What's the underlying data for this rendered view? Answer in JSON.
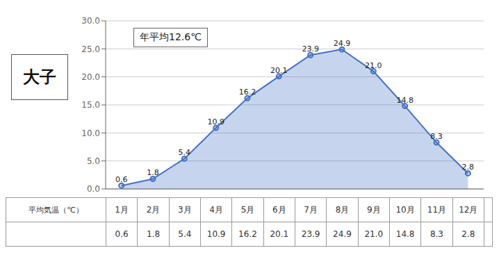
{
  "chart_data": {
    "type": "area",
    "title": "大子",
    "annotation": "年平均12.6℃",
    "table_label": "平均気温（℃）",
    "categories": [
      "1月",
      "2月",
      "3月",
      "4月",
      "5月",
      "6月",
      "7月",
      "8月",
      "9月",
      "10月",
      "11月",
      "12月"
    ],
    "values": [
      0.6,
      1.8,
      5.4,
      10.9,
      16.2,
      20.1,
      23.9,
      24.9,
      21.0,
      14.8,
      8.3,
      2.8
    ],
    "value_labels": [
      "0.6",
      "1.8",
      "5.4",
      "10.9",
      "16.2",
      "20.1",
      "23.9",
      "24.9",
      "21.0",
      "14.8",
      "8.3",
      "2.8"
    ],
    "ylim": [
      0.0,
      30.0
    ],
    "yticks": [
      {
        "value": 0,
        "label": "0.0"
      },
      {
        "value": 5,
        "label": "5.0"
      },
      {
        "value": 10,
        "label": "10.0"
      },
      {
        "value": 15,
        "label": "15.0"
      },
      {
        "value": 20,
        "label": "20.0"
      },
      {
        "value": 25,
        "label": "25.0"
      },
      {
        "value": 30,
        "label": "30.0"
      }
    ],
    "color": "#4472C4",
    "marker": "circle",
    "grid": true,
    "data_labels": true,
    "tick_labels": "y"
  }
}
